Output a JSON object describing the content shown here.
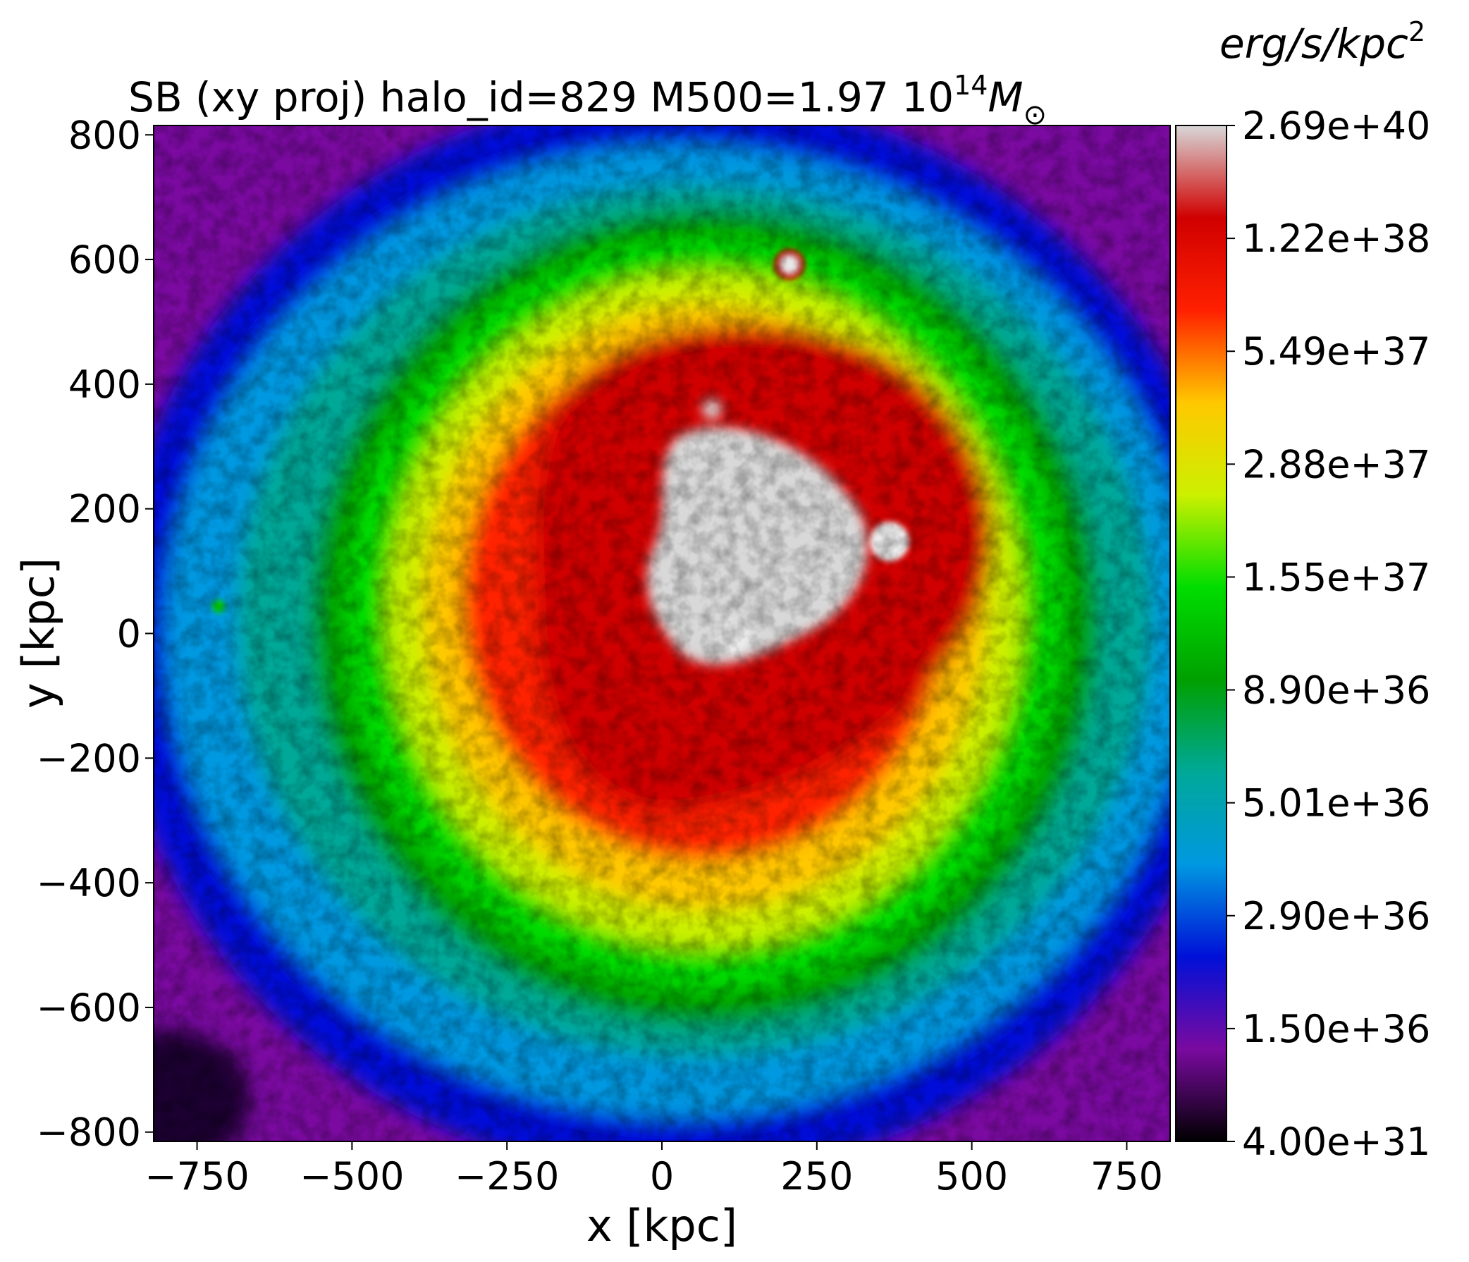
{
  "chart_data": {
    "type": "heatmap",
    "title_prefix": "SB (xy proj) halo_id=829 M500=1.97 10",
    "title_exponent": "14",
    "title_mass_symbol": "M",
    "title_sun_symbol": "⊙",
    "xlabel": "x [kpc]",
    "ylabel": "y [kpc]",
    "xlim": [
      -820,
      820
    ],
    "ylim": [
      -815,
      815
    ],
    "x_ticks": [
      -750,
      -500,
      -250,
      0,
      250,
      500,
      750
    ],
    "x_tick_labels": [
      "−750",
      "−500",
      "−250",
      "0",
      "250",
      "500",
      "750"
    ],
    "y_ticks": [
      800,
      600,
      400,
      200,
      0,
      -200,
      -400,
      -600,
      -800
    ],
    "y_tick_labels": [
      "800",
      "600",
      "400",
      "200",
      "0",
      "−200",
      "−400",
      "−600",
      "−800"
    ],
    "colorbar": {
      "unit_label": "erg/s/kpc",
      "unit_exponent": "2",
      "tick_labels": [
        "2.69e+40",
        "1.22e+38",
        "5.49e+37",
        "2.88e+37",
        "1.55e+37",
        "8.90e+36",
        "5.01e+36",
        "2.90e+36",
        "1.50e+36",
        "4.00e+31"
      ],
      "colormap": [
        "#000000",
        "#7a0aa0",
        "#0010d8",
        "#0098e0",
        "#00a898",
        "#00a000",
        "#00dd00",
        "#ccf000",
        "#ffc800",
        "#ff2000",
        "#d00000",
        "#d8d8d8"
      ]
    },
    "features": {
      "core_center": [
        90,
        120
      ],
      "bright_knots": [
        [
          360,
          150
        ],
        [
          115,
          0
        ],
        [
          205,
          590
        ]
      ]
    }
  }
}
